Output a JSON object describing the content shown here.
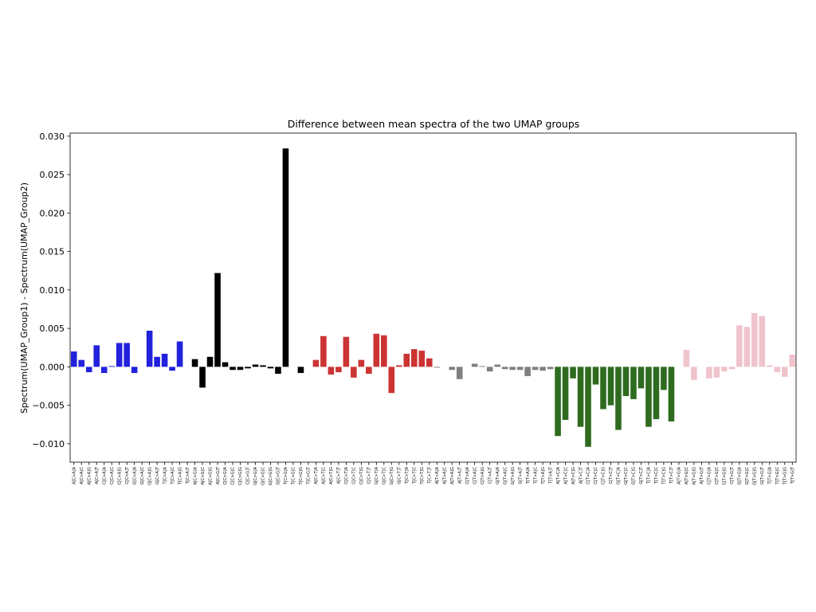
{
  "chart_data": {
    "type": "bar",
    "title": "Difference between mean spectra of the two UMAP groups",
    "xlabel": "",
    "ylabel": "Spectrum(UMAP_Group1) - Spectrum(UMAP_Group2)",
    "ylim": [
      -0.0124,
      0.0304
    ],
    "yticks": [
      -0.01,
      -0.005,
      0.0,
      0.005,
      0.01,
      0.015,
      0.02,
      0.025,
      0.03
    ],
    "ytick_labels": [
      "−0.010",
      "−0.005",
      "0.000",
      "0.005",
      "0.010",
      "0.015",
      "0.020",
      "0.025",
      "0.030"
    ],
    "grid": false,
    "legend": "none",
    "group_colors": [
      "#2222dd",
      "#000000",
      "#cc3333",
      "#808080",
      "#2e6b1f",
      "#f0c4cc"
    ],
    "groups": [
      "C>A",
      "C>G",
      "C>T",
      "T>A",
      "T>C",
      "T>G"
    ],
    "categories": [
      "A[C>A]A",
      "A[C>A]C",
      "A[C>A]G",
      "A[C>A]T",
      "C[C>A]A",
      "C[C>A]C",
      "C[C>A]G",
      "C[C>A]T",
      "G[C>A]A",
      "G[C>A]C",
      "G[C>A]G",
      "G[C>A]T",
      "T[C>A]A",
      "T[C>A]C",
      "T[C>A]G",
      "T[C>A]T",
      "A[C>G]A",
      "A[C>G]C",
      "A[C>G]G",
      "A[C>G]T",
      "C[C>G]A",
      "C[C>G]C",
      "C[C>G]G",
      "C[C>G]T",
      "G[C>G]A",
      "G[C>G]C",
      "G[C>G]G",
      "G[C>G]T",
      "T[C>G]A",
      "T[C>G]C",
      "T[C>G]G",
      "T[C>G]T",
      "A[C>T]A",
      "A[C>T]C",
      "A[C>T]G",
      "A[C>T]T",
      "C[C>T]A",
      "C[C>T]C",
      "C[C>T]G",
      "C[C>T]T",
      "G[C>T]A",
      "G[C>T]C",
      "G[C>T]G",
      "G[C>T]T",
      "T[C>T]A",
      "T[C>T]C",
      "T[C>T]G",
      "T[C>T]T",
      "A[T>A]A",
      "A[T>A]C",
      "A[T>A]G",
      "A[T>A]T",
      "C[T>A]A",
      "C[T>A]C",
      "C[T>A]G",
      "C[T>A]T",
      "G[T>A]A",
      "G[T>A]C",
      "G[T>A]G",
      "G[T>A]T",
      "T[T>A]A",
      "T[T>A]C",
      "T[T>A]G",
      "T[T>A]T",
      "A[T>C]A",
      "A[T>C]C",
      "A[T>C]G",
      "A[T>C]T",
      "C[T>C]A",
      "C[T>C]C",
      "C[T>C]G",
      "C[T>C]T",
      "G[T>C]A",
      "G[T>C]C",
      "G[T>C]G",
      "G[T>C]T",
      "T[T>C]A",
      "T[T>C]C",
      "T[T>C]G",
      "T[T>C]T",
      "A[T>G]A",
      "A[T>G]C",
      "A[T>G]G",
      "A[T>G]T",
      "C[T>G]A",
      "C[T>G]C",
      "C[T>G]G",
      "C[T>G]T",
      "G[T>G]A",
      "G[T>G]C",
      "G[T>G]G",
      "G[T>G]T",
      "T[T>G]A",
      "T[T>G]C",
      "T[T>G]G",
      "T[T>G]T"
    ],
    "values": [
      0.002,
      0.0009,
      -0.0007,
      0.0028,
      -0.0008,
      0.0001,
      0.0031,
      0.0031,
      -0.0008,
      0.0,
      0.0047,
      0.0013,
      0.0017,
      -0.0005,
      0.0033,
      0.0,
      0.001,
      -0.0027,
      0.0013,
      0.0122,
      0.0006,
      -0.0004,
      -0.0004,
      -0.0002,
      0.0003,
      0.0002,
      -0.0002,
      -0.0009,
      0.0284,
      0.0,
      -0.0008,
      0.0,
      0.0009,
      0.004,
      -0.001,
      -0.0007,
      0.0039,
      -0.0014,
      0.0009,
      -0.0009,
      0.0043,
      0.0041,
      -0.0034,
      0.0002,
      0.0017,
      0.0023,
      0.0021,
      0.0011,
      -0.0001,
      0.0,
      -0.0004,
      -0.0016,
      0.0,
      0.0004,
      0.0001,
      -0.0006,
      0.0003,
      -0.0003,
      -0.0004,
      -0.0004,
      -0.0012,
      -0.0004,
      -0.0005,
      -0.0003,
      -0.009,
      -0.0069,
      -0.0015,
      -0.0078,
      -0.0104,
      -0.0023,
      -0.0055,
      -0.005,
      -0.0082,
      -0.0038,
      -0.0042,
      -0.0028,
      -0.0078,
      -0.0068,
      -0.003,
      -0.0071,
      0.0,
      0.0022,
      -0.0017,
      0.0,
      -0.0015,
      -0.0014,
      -0.0006,
      -0.0003,
      0.0054,
      0.0052,
      0.007,
      0.0066,
      0.0002,
      -0.0007,
      -0.0013,
      0.0016
    ]
  }
}
